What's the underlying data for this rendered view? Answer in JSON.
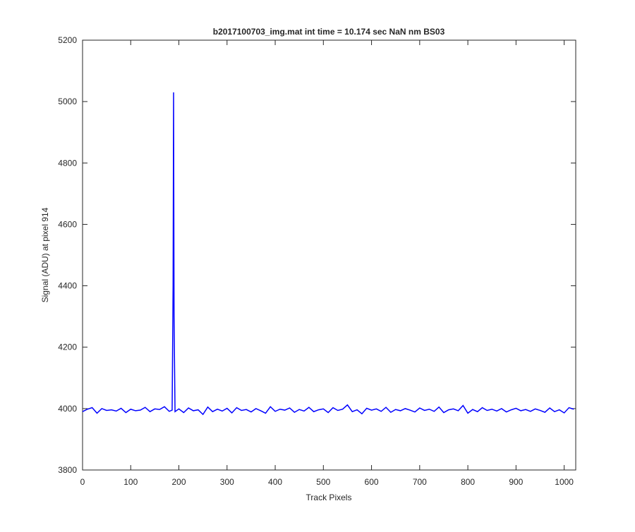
{
  "chart_data": {
    "type": "line",
    "title": "b2017100703_img.mat int time = 10.174 sec  NaN nm BS03",
    "x_label": "Track Pixels",
    "y_label": "Signal (ADU) at pixel 914",
    "color": "#0000ff",
    "x": [
      0,
      10,
      20,
      30,
      40,
      50,
      60,
      70,
      80,
      90,
      100,
      110,
      120,
      130,
      140,
      150,
      160,
      170,
      180,
      186,
      188,
      189,
      190,
      192,
      200,
      210,
      220,
      230,
      240,
      250,
      260,
      270,
      280,
      290,
      300,
      310,
      320,
      330,
      340,
      350,
      360,
      370,
      380,
      390,
      400,
      410,
      420,
      430,
      440,
      450,
      460,
      470,
      480,
      490,
      500,
      510,
      520,
      530,
      540,
      550,
      560,
      570,
      580,
      590,
      600,
      610,
      620,
      630,
      640,
      650,
      660,
      670,
      680,
      690,
      700,
      710,
      720,
      730,
      740,
      750,
      760,
      770,
      780,
      790,
      800,
      810,
      820,
      830,
      840,
      850,
      860,
      870,
      880,
      890,
      900,
      910,
      920,
      930,
      940,
      950,
      960,
      970,
      980,
      990,
      1000,
      1010,
      1020
    ],
    "values": [
      3990,
      3998,
      4003,
      3985,
      4000,
      3994,
      3996,
      3992,
      4001,
      3987,
      3998,
      3993,
      3995,
      4004,
      3990,
      3999,
      3997,
      4006,
      3991,
      3995,
      4400,
      5030,
      4300,
      3990,
      3999,
      3987,
      4002,
      3993,
      3996,
      3981,
      4005,
      3990,
      3998,
      3992,
      4001,
      3986,
      4003,
      3994,
      3997,
      3989,
      4000,
      3993,
      3985,
      4006,
      3991,
      3998,
      3995,
      4002,
      3988,
      3997,
      3992,
      4004,
      3990,
      3996,
      3999,
      3987,
      4003,
      3994,
      3998,
      4012,
      3990,
      3996,
      3983,
      4001,
      3995,
      3999,
      3991,
      4004,
      3988,
      3997,
      3993,
      4000,
      3995,
      3989,
      4002,
      3994,
      3998,
      3991,
      4005,
      3987,
      3996,
      3999,
      3993,
      4010,
      3985,
      3997,
      3990,
      4003,
      3994,
      3998,
      3992,
      4000,
      3989,
      3996,
      4001,
      3993,
      3997,
      3991,
      3999,
      3994,
      3988,
      4002,
      3990,
      3996,
      3986,
      4003,
      3998
    ],
    "xlim": [
      0,
      1024
    ],
    "ylim": [
      3800,
      5200
    ],
    "xticks": [
      0,
      100,
      200,
      300,
      400,
      500,
      600,
      700,
      800,
      900,
      1000
    ],
    "yticks": [
      3800,
      4000,
      4200,
      4400,
      4600,
      4800,
      5000,
      5200
    ]
  }
}
